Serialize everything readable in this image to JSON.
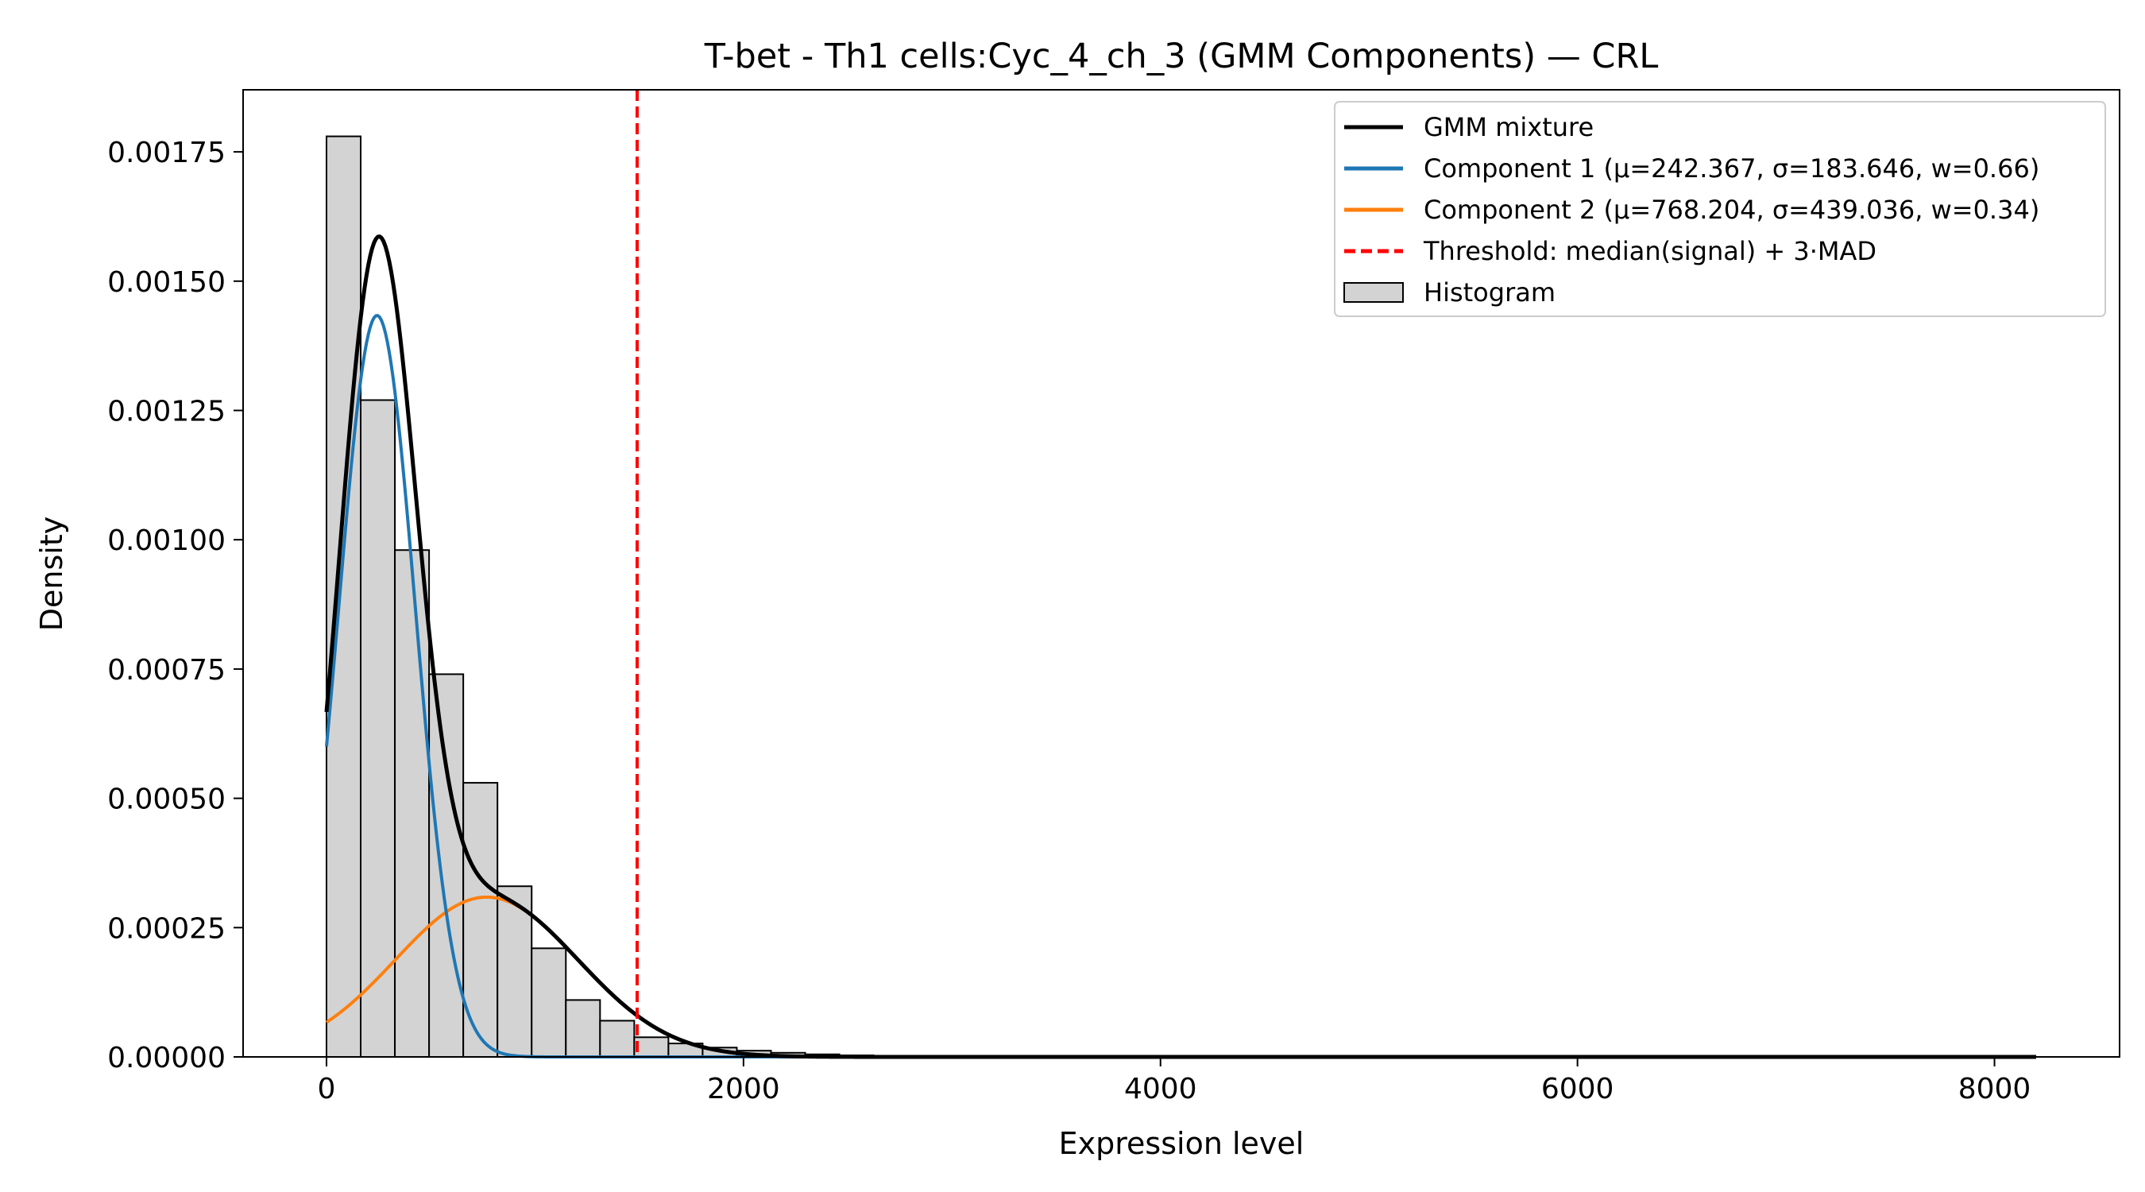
{
  "chart_data": {
    "type": "bar",
    "title": "T-bet - Th1 cells:Cyc_4_ch_3 (GMM Components) — CRL",
    "xlabel": "Expression level",
    "ylabel": "Density",
    "xlim": [
      -400,
      8600
    ],
    "ylim": [
      0,
      0.00187
    ],
    "x_ticks": [
      0,
      2000,
      4000,
      6000,
      8000
    ],
    "x_tick_labels": [
      "0",
      "2000",
      "4000",
      "6000",
      "8000"
    ],
    "y_ticks": [
      0,
      0.00025,
      0.0005,
      0.00075,
      0.001,
      0.00125,
      0.0015,
      0.00175
    ],
    "y_tick_labels": [
      "0.00000",
      "0.00025",
      "0.00050",
      "0.00075",
      "0.00100",
      "0.00125",
      "0.00150",
      "0.00175"
    ],
    "grid": false,
    "legend_position": "top-right",
    "histogram": {
      "name": "Histogram",
      "color": "#d3d3d3",
      "edge_color": "#000000",
      "bin_width": 164,
      "bin_edges_start": 0,
      "values": [
        0.00178,
        0.00127,
        0.00098,
        0.00074,
        0.00053,
        0.00033,
        0.00021,
        0.00011,
        7e-05,
        3.8e-05,
        2.6e-05,
        1.8e-05,
        1.2e-05,
        8e-06,
        5e-06,
        3e-06
      ]
    },
    "series": [
      {
        "name": "GMM mixture",
        "type": "line",
        "color": "#000000",
        "gmm": {
          "components": [
            [
              242.367,
              183.646,
              0.66
            ],
            [
              768.204,
              439.036,
              0.34
            ]
          ]
        },
        "x_range": [
          0,
          8200
        ]
      },
      {
        "name": "Component 1 (μ=242.367, σ=183.646, w=0.66)",
        "type": "line",
        "color": "#1f77b4",
        "gmm": {
          "components": [
            [
              242.367,
              183.646,
              0.66
            ]
          ]
        },
        "x_range": [
          0,
          8200
        ]
      },
      {
        "name": "Component 2 (μ=768.204, σ=439.036, w=0.34)",
        "type": "line",
        "color": "#ff7f0e",
        "gmm": {
          "components": [
            [
              768.204,
              439.036,
              0.34
            ]
          ]
        },
        "x_range": [
          0,
          8200
        ]
      }
    ],
    "threshold": {
      "name": "Threshold: median(signal) + 3·MAD",
      "x": 1490,
      "color": "#ff0000",
      "style": "dashed"
    },
    "legend_order": [
      "GMM mixture",
      "Component 1 (μ=242.367, σ=183.646, w=0.66)",
      "Component 2 (μ=768.204, σ=439.036, w=0.34)",
      "Threshold: median(signal) + 3·MAD",
      "Histogram"
    ]
  }
}
